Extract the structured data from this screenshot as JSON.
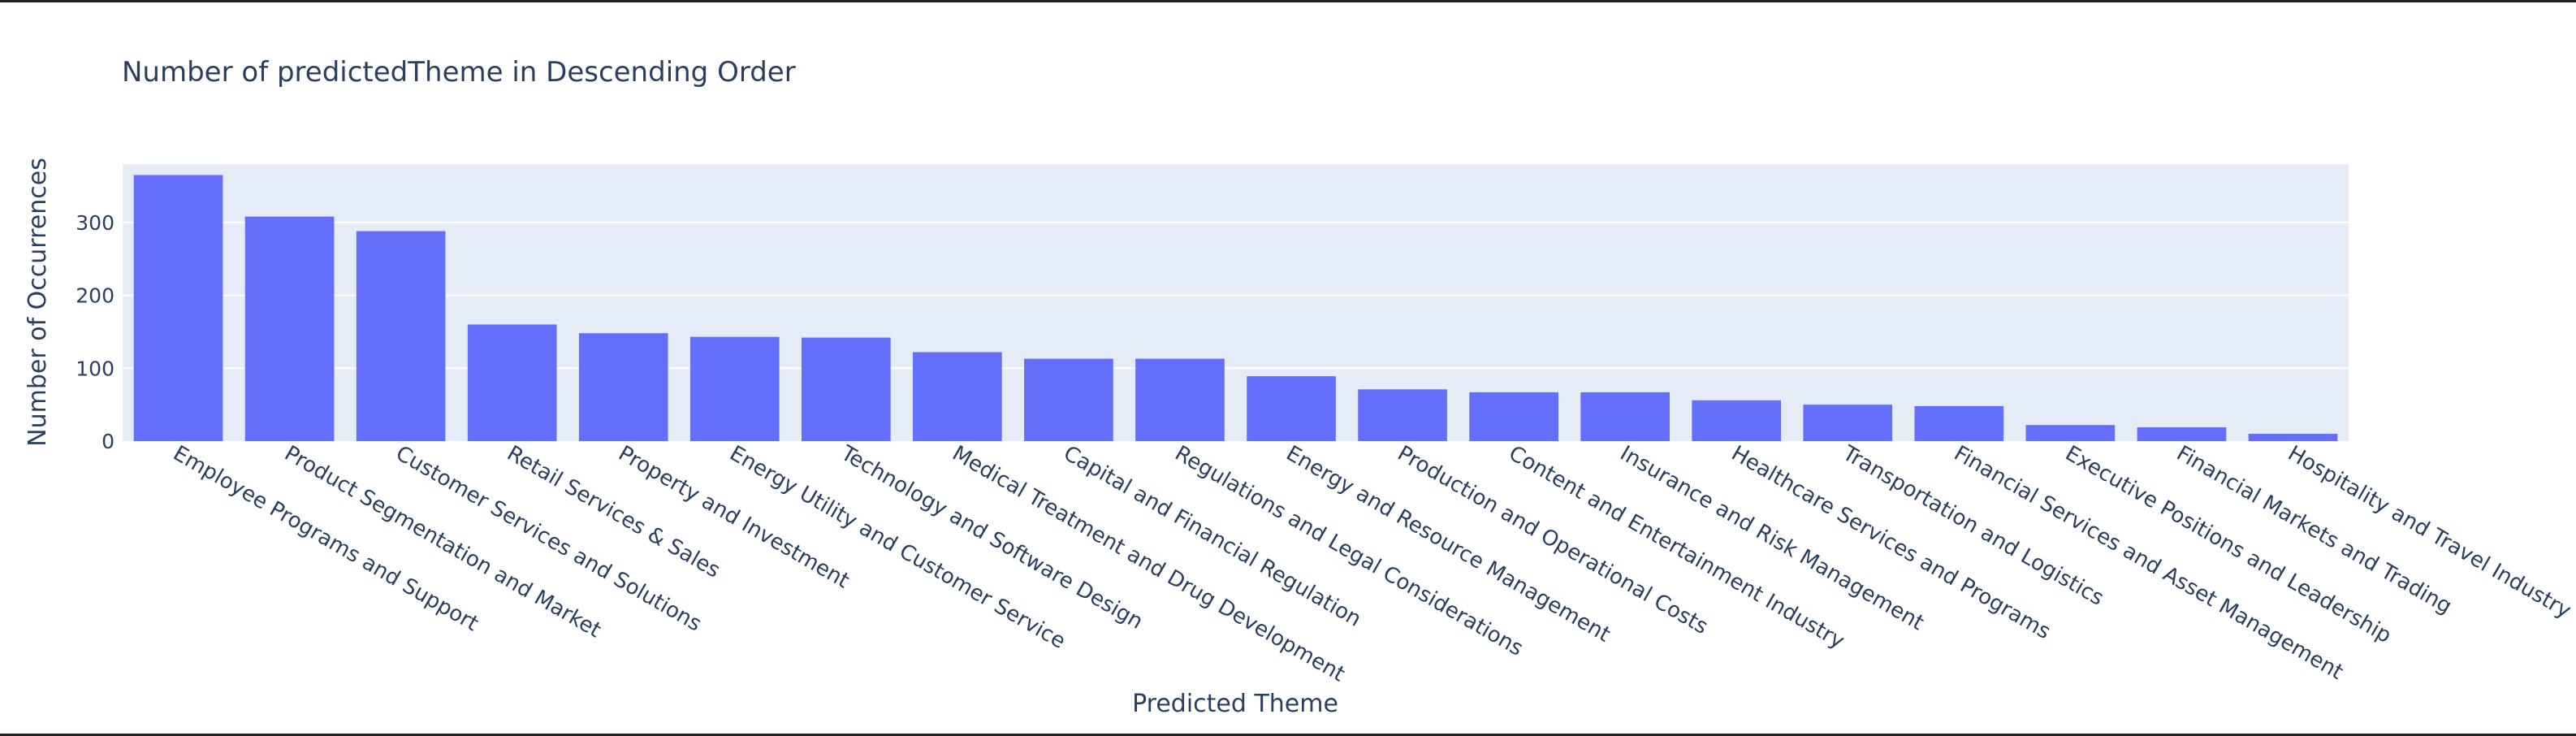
{
  "chart_data": {
    "type": "bar",
    "title": "Number of predictedTheme in Descending Order",
    "xlabel": "Predicted Theme",
    "ylabel": "Number of Occurrences",
    "ylim": [
      0,
      380
    ],
    "yticks": [
      0,
      100,
      200,
      300
    ],
    "grid": true,
    "bar_color": "#636efa",
    "plot_bg": "#e5ecf6",
    "categories": [
      "Employee Programs and Support",
      "Product Segmentation and Market",
      "Customer Services and Solutions",
      "Retail Services & Sales",
      "Property and Investment",
      "Energy Utility and Customer Service",
      "Technology and Software Design",
      "Medical Treatment and Drug Development",
      "Capital and Financial Regulation",
      "Regulations and Legal Considerations",
      "Energy and Resource Management",
      "Production and Operational Costs",
      "Content and Entertainment Industry",
      "Insurance and Risk Management",
      "Healthcare Services and Programs",
      "Transportation and Logistics",
      "Financial Services and Asset Management",
      "Executive Positions and Leadership",
      "Financial Markets and Trading",
      "Hospitality and Travel Industry"
    ],
    "values": [
      365,
      308,
      288,
      160,
      148,
      143,
      142,
      122,
      113,
      113,
      89,
      71,
      67,
      67,
      56,
      50,
      48,
      22,
      19,
      10
    ]
  }
}
